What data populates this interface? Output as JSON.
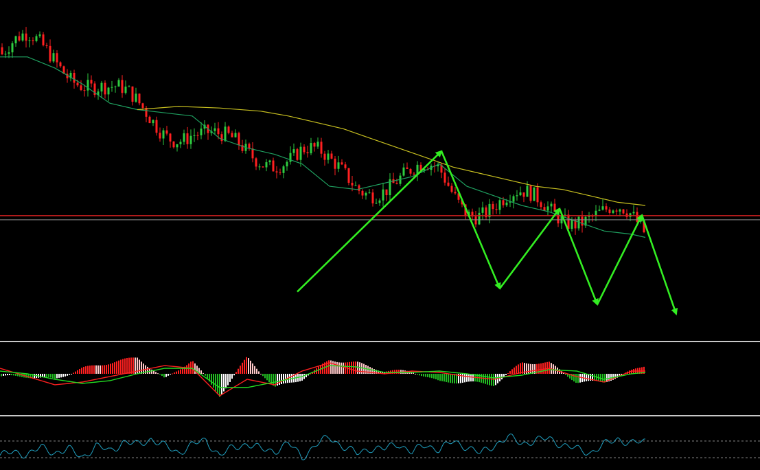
{
  "colors": {
    "background": "#000000",
    "bull_candle": "#2ecc40",
    "bear_candle": "#ff2020",
    "ma_fast": "#1fa060",
    "ma_slow": "#c8c020",
    "support_line": "#d02020",
    "secondary_line": "#909090",
    "panel_separator": "#c8c8c8",
    "wave_arrows": "#33ee22",
    "macd_main": "#ff2020",
    "macd_signal": "#22dd22",
    "hist_pos_strong": "#ff2020",
    "hist_pos_weak": "#ffc8c8",
    "hist_neg_strong": "#22bb22",
    "hist_neg_weak": "#ffffff",
    "osc_line": "#20a0c0",
    "osc_levels": "#909090"
  },
  "chart_data": [
    {
      "type": "candlestick",
      "title": "",
      "xlabel": "",
      "ylabel": "",
      "grid": false,
      "ylim": [
        0,
        100
      ],
      "series": [
        {
          "kind": "moving-average-fast",
          "x": [
            0,
            40,
            80,
            120,
            160,
            200,
            240,
            280,
            320,
            360,
            400,
            440,
            480,
            520,
            560,
            600,
            640,
            680,
            720,
            760,
            800,
            840,
            880,
            920,
            940
          ],
          "values": [
            86.5,
            86.5,
            83,
            78,
            72,
            70,
            69,
            68,
            61,
            58,
            56,
            53,
            46,
            45,
            47,
            49,
            53,
            46,
            43,
            40,
            38,
            35,
            32,
            31,
            30
          ]
        },
        {
          "kind": "moving-average-slow",
          "x": [
            200,
            260,
            320,
            380,
            420,
            460,
            500,
            540,
            580,
            620,
            660,
            700,
            740,
            780,
            820,
            860,
            900,
            940
          ],
          "values": [
            70,
            71,
            70.5,
            69.5,
            68,
            66,
            64,
            61,
            58,
            55,
            52,
            50,
            48,
            46,
            45,
            43,
            41,
            40
          ]
        },
        {
          "kind": "horizontal-level",
          "value": 36.8
        },
        {
          "kind": "horizontal-level",
          "value": 35.5
        },
        {
          "kind": "wave-path",
          "x": [
            433,
            643,
            728,
            815,
            870,
            935,
            985
          ],
          "values": [
            13,
            57,
            14,
            39,
            9,
            37,
            6
          ]
        }
      ]
    },
    {
      "type": "bar",
      "subtype": "macd-histogram-with-lines",
      "ylim": [
        -1,
        1
      ],
      "x": [
        0,
        40,
        80,
        120,
        160,
        200,
        240,
        280,
        320,
        360,
        400,
        440,
        480,
        520,
        560,
        600,
        640,
        680,
        720,
        760,
        800,
        840,
        880,
        940
      ],
      "series": [
        {
          "kind": "macd-line",
          "x": [
            0,
            40,
            80,
            120,
            160,
            200,
            240,
            280,
            320,
            360,
            400,
            440,
            480,
            520,
            560,
            600,
            640,
            680,
            720,
            760,
            800,
            840,
            880,
            920,
            940
          ],
          "values": [
            0.2,
            -0.1,
            -0.4,
            -0.3,
            -0.1,
            0.1,
            0.3,
            0.2,
            -0.8,
            -0.2,
            -0.4,
            0.1,
            0.4,
            0.1,
            0.0,
            0.1,
            0.05,
            -0.1,
            -0.2,
            0.05,
            0.2,
            -0.1,
            -0.3,
            0.1,
            0.1
          ]
        },
        {
          "kind": "signal-line",
          "x": [
            0,
            40,
            80,
            120,
            160,
            200,
            240,
            280,
            320,
            360,
            400,
            440,
            480,
            520,
            560,
            600,
            640,
            680,
            720,
            760,
            800,
            840,
            880,
            920,
            940
          ],
          "values": [
            0.1,
            0.0,
            -0.2,
            -0.35,
            -0.25,
            0.0,
            0.2,
            0.2,
            -0.5,
            -0.5,
            -0.3,
            -0.1,
            0.3,
            0.25,
            0.05,
            0.05,
            0.1,
            0.0,
            -0.15,
            -0.05,
            0.15,
            0.1,
            -0.2,
            0.0,
            0.05
          ]
        },
        {
          "kind": "histogram",
          "x": [
            0,
            40,
            80,
            120,
            160,
            200,
            240,
            280,
            320,
            360,
            400,
            440,
            480,
            520,
            560,
            600,
            640,
            680,
            720,
            760,
            800,
            840,
            880,
            940
          ],
          "values": [
            -0.1,
            -0.1,
            -0.2,
            0.2,
            0.4,
            0.6,
            -0.2,
            0.5,
            -0.8,
            0.6,
            -0.5,
            -0.2,
            0.5,
            0.4,
            0.1,
            0.1,
            -0.3,
            -0.3,
            -0.4,
            0.4,
            0.4,
            -0.3,
            -0.3,
            0.3
          ]
        }
      ]
    },
    {
      "type": "line",
      "subtype": "oscillator",
      "ylim": [
        -1,
        1
      ],
      "levels": [
        0.55,
        -0.55
      ],
      "x": [
        0,
        20,
        40,
        60,
        80,
        100,
        120,
        140,
        160,
        180,
        200,
        220,
        240,
        260,
        280,
        300,
        320,
        340,
        360,
        380,
        400,
        420,
        440,
        460,
        480,
        500,
        520,
        540,
        560,
        580,
        600,
        620,
        640,
        660,
        680,
        700,
        720,
        740,
        760,
        780,
        800,
        820,
        840,
        860,
        880,
        900,
        920,
        940
      ],
      "values": [
        -0.4,
        -0.2,
        -0.3,
        0.1,
        -0.2,
        0.0,
        -0.5,
        0.2,
        -0.1,
        0.5,
        0.3,
        0.7,
        0.2,
        -0.2,
        0.3,
        0.6,
        -0.4,
        0.1,
        0.4,
        0.0,
        -0.1,
        0.4,
        -0.5,
        0.3,
        0.8,
        0.2,
        -0.3,
        0.1,
        0.0,
        0.4,
        -0.2,
        0.3,
        0.0,
        0.5,
        0.2,
        -0.3,
        0.3,
        0.8,
        0.4,
        0.6,
        0.7,
        0.3,
        0.0,
        -0.2,
        0.3,
        0.7,
        0.4,
        0.5
      ]
    }
  ]
}
